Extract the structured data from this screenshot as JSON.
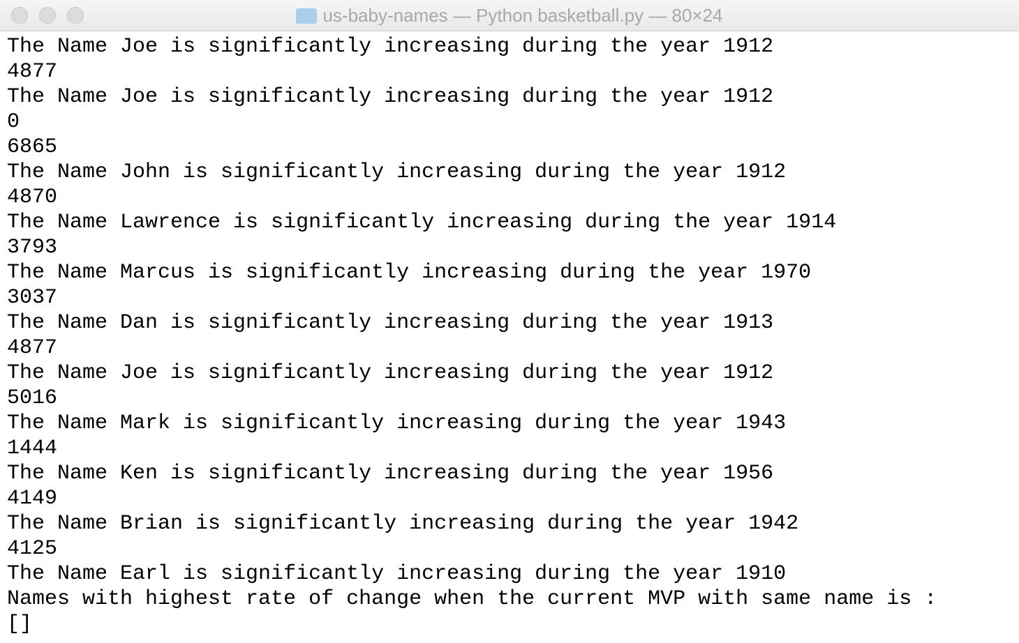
{
  "window": {
    "title": "us-baby-names — Python basketball.py — 80×24"
  },
  "terminal": {
    "lines": [
      "The Name Joe is significantly increasing during the year 1912",
      "4877",
      "The Name Joe is significantly increasing during the year 1912",
      "0",
      "6865",
      "The Name John is significantly increasing during the year 1912",
      "4870",
      "The Name Lawrence is significantly increasing during the year 1914",
      "3793",
      "The Name Marcus is significantly increasing during the year 1970",
      "3037",
      "The Name Dan is significantly increasing during the year 1913",
      "4877",
      "The Name Joe is significantly increasing during the year 1912",
      "5016",
      "The Name Mark is significantly increasing during the year 1943",
      "1444",
      "The Name Ken is significantly increasing during the year 1956",
      "4149",
      "The Name Brian is significantly increasing during the year 1942",
      "4125",
      "The Name Earl is significantly increasing during the year 1910",
      "Names with highest rate of change when the current MVP with same name is :",
      "[]"
    ]
  }
}
